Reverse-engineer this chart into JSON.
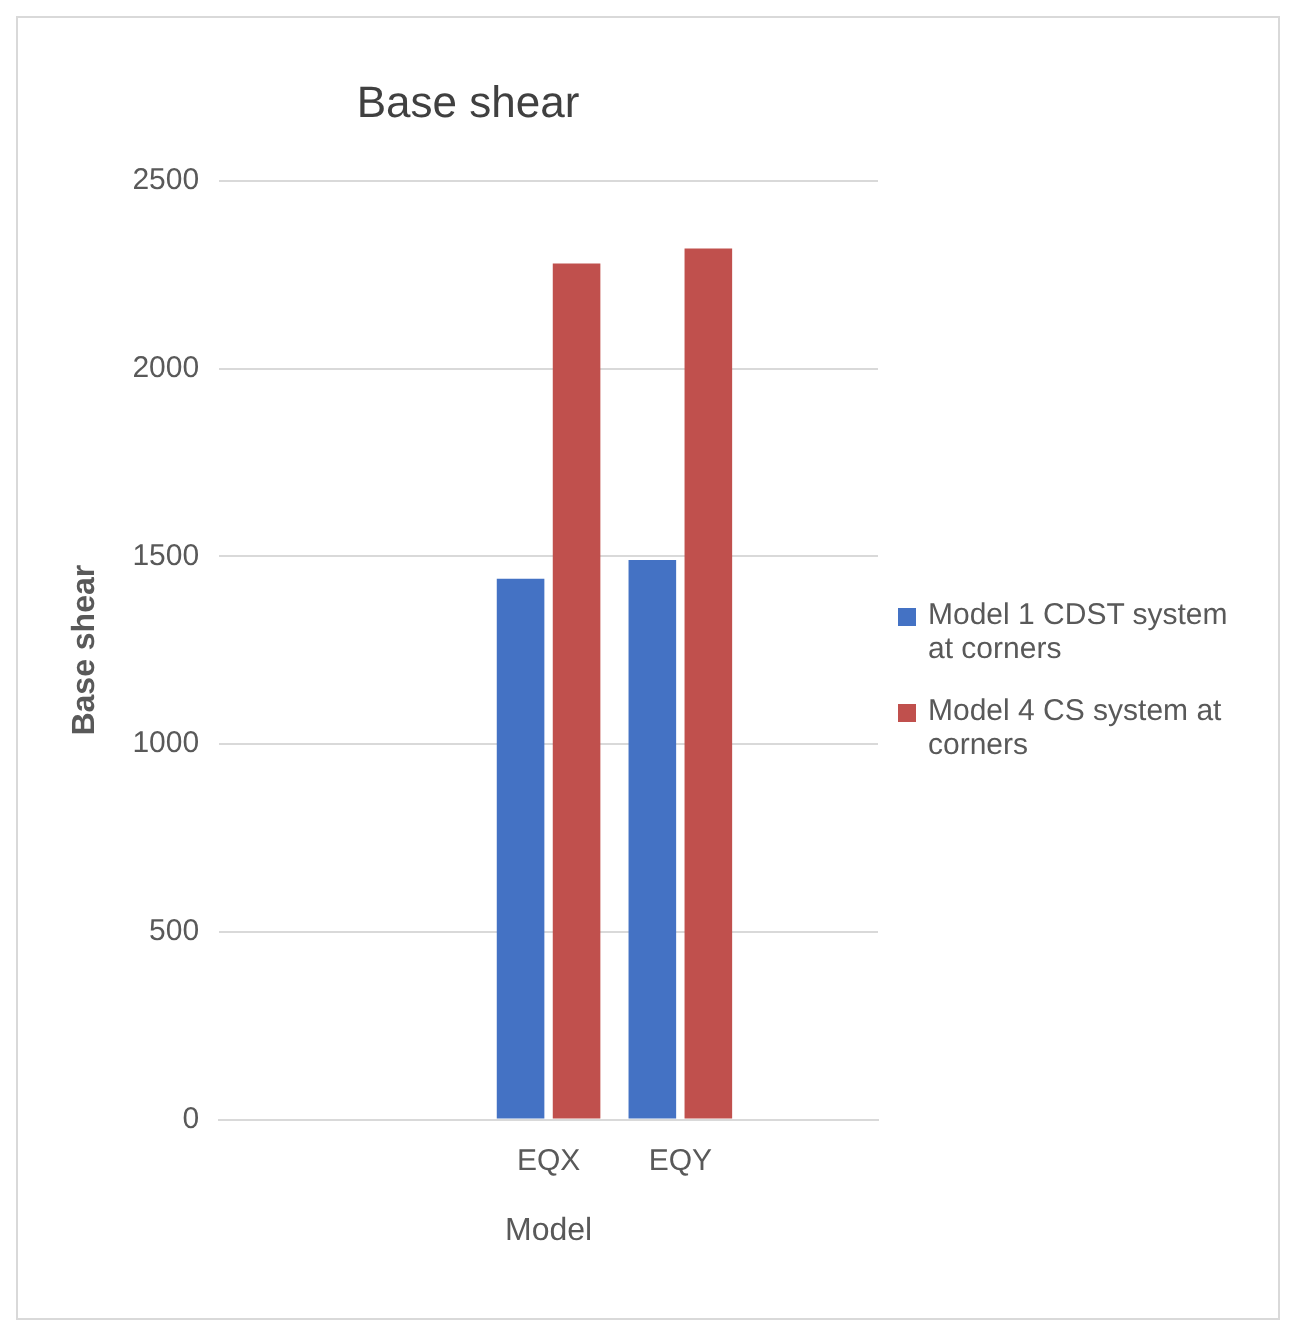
{
  "chart_data": {
    "type": "bar",
    "title": "Base shear",
    "xlabel": "Model",
    "ylabel": "Base shear",
    "categories": [
      null,
      null,
      "EQX",
      "EQY",
      null
    ],
    "series": [
      {
        "name": "Model 1 CDST system at corners",
        "color": "#4472c4",
        "values": [
          null,
          null,
          1440,
          1490,
          null
        ]
      },
      {
        "name": "Model 4 CS system at corners",
        "color": "#c0504d",
        "values": [
          null,
          null,
          2280,
          2320,
          null
        ]
      }
    ],
    "ylim": [
      0,
      2500
    ],
    "yticks": [
      0,
      500,
      1000,
      1500,
      2000,
      2500
    ],
    "grid": "y",
    "legend": "right"
  }
}
